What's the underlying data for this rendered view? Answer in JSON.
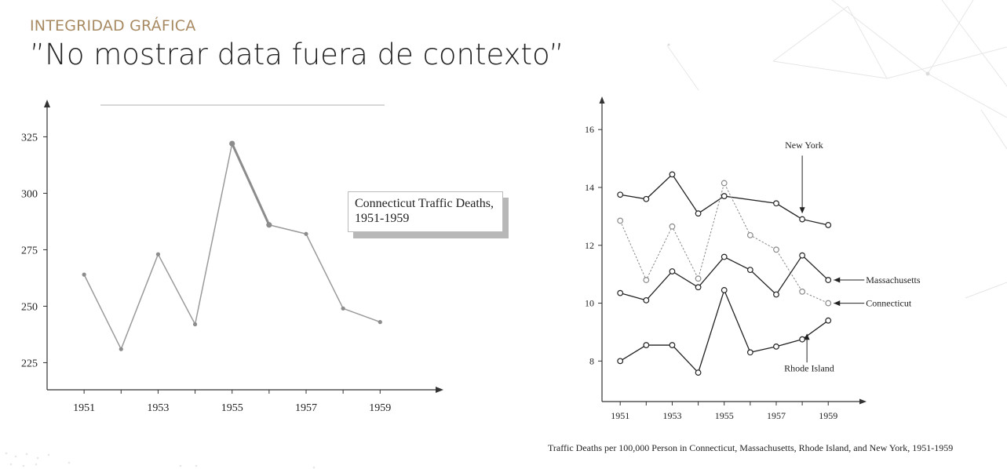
{
  "header": {
    "kicker": "INTEGRIDAD GRÁFICA",
    "title": "”No mostrar data fuera de contexto”"
  },
  "left_chart_legend": {
    "line1": "Connecticut Traffic Deaths,",
    "line2": "1951-1959"
  },
  "right_chart_caption": "Traffic Deaths per 100,000 Person in Connecticut, Massachusetts, Rhode Island, and New York, 1951-1959",
  "colors": {
    "accent": "#a88a62",
    "left_line": "#9a9a9a",
    "right_line": "#222222",
    "connecticut_line": "#8a8a8a"
  },
  "chart_data": [
    {
      "type": "line",
      "title": "Connecticut Traffic Deaths, 1951-1959",
      "x": [
        1951,
        1952,
        1953,
        1954,
        1955,
        1956,
        1957,
        1958,
        1959
      ],
      "x_tick_labels": [
        "1951",
        "1953",
        "1955",
        "1957",
        "1959"
      ],
      "y_tick_labels": [
        "225",
        "250",
        "275",
        "300",
        "325"
      ],
      "ylim": [
        213,
        338
      ],
      "xlim": [
        1950.0,
        1960.5
      ],
      "series": [
        {
          "name": "Connecticut Traffic Deaths, 1951-1959",
          "values": [
            264,
            231,
            273,
            242,
            322,
            286,
            282,
            249,
            243
          ]
        }
      ],
      "legend_position": "right",
      "grid": false
    },
    {
      "type": "line",
      "title": "Traffic Deaths per 100,000 Person in Connecticut, Massachusetts, Rhode Island, and New York, 1951-1959",
      "x": [
        1951,
        1952,
        1953,
        1954,
        1955,
        1956,
        1957,
        1958,
        1959
      ],
      "x_tick_labels": [
        "1951",
        "1953",
        "1955",
        "1957",
        "1959"
      ],
      "y_tick_labels": [
        "8",
        "10",
        "12",
        "14",
        "16"
      ],
      "ylim": [
        6.6,
        16.9
      ],
      "xlim": [
        1950.3,
        1960.2
      ],
      "series": [
        {
          "name": "New York",
          "values": [
            13.75,
            13.6,
            14.45,
            13.1,
            13.7,
            null,
            13.45,
            12.9,
            12.7
          ]
        },
        {
          "name": "Connecticut",
          "values": [
            12.85,
            10.8,
            12.65,
            10.85,
            14.15,
            12.35,
            11.85,
            10.4,
            10.0
          ]
        },
        {
          "name": "Massachusetts",
          "values": [
            10.35,
            10.1,
            11.1,
            10.55,
            11.6,
            11.15,
            10.3,
            11.65,
            10.8
          ]
        },
        {
          "name": "Rhode Island",
          "values": [
            8.0,
            8.55,
            8.55,
            7.6,
            10.45,
            8.3,
            8.5,
            8.75,
            9.4
          ]
        }
      ],
      "labels": {
        "new_york": "New York",
        "massachusetts": "Massachusetts",
        "connecticut": "Connecticut",
        "rhode_island": "Rhode Island"
      },
      "grid": false
    }
  ]
}
